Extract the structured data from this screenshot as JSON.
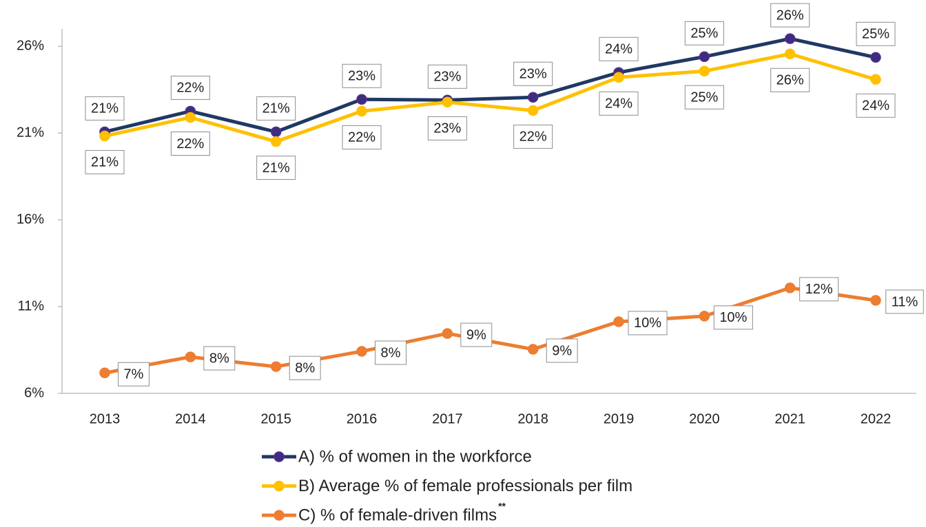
{
  "chart_data": {
    "type": "line",
    "categories": [
      "2013",
      "2014",
      "2015",
      "2016",
      "2017",
      "2018",
      "2019",
      "2020",
      "2021",
      "2022"
    ],
    "series": [
      {
        "name": "A) % of women in the workforce",
        "color": "#203864",
        "marker_color": "#3b2d80",
        "values": [
          21.07,
          22.26,
          21.07,
          22.94,
          22.9,
          23.06,
          24.49,
          25.4,
          26.44,
          25.36
        ],
        "value_labels": [
          "21%",
          "22%",
          "21%",
          "23%",
          "23%",
          "23%",
          "24%",
          "25%",
          "26%",
          "25%"
        ]
      },
      {
        "name": "B) Average % of female professionals per film",
        "color": "#ffc000",
        "marker_color": "#ffc000",
        "values": [
          20.83,
          21.9,
          20.51,
          22.26,
          22.78,
          22.3,
          24.21,
          24.57,
          25.56,
          24.09
        ],
        "value_labels": [
          "21%",
          "22%",
          "21%",
          "22%",
          "23%",
          "22%",
          "24%",
          "25%",
          "26%",
          "24%"
        ]
      },
      {
        "name": "C) % of female-driven films",
        "footnote_mark": "**",
        "color": "#ed7d31",
        "marker_color": "#ed7d31",
        "values": [
          7.18,
          8.1,
          7.54,
          8.42,
          9.45,
          8.54,
          10.13,
          10.45,
          12.08,
          11.36
        ],
        "value_labels": [
          "7%",
          "8%",
          "8%",
          "8%",
          "9%",
          "9%",
          "10%",
          "10%",
          "12%",
          "11%"
        ]
      }
    ],
    "ylim": [
      6,
      27
    ],
    "yticks": [
      {
        "value": 6,
        "label": "6%"
      },
      {
        "value": 11,
        "label": "11%"
      },
      {
        "value": 16,
        "label": "16%"
      },
      {
        "value": 21,
        "label": "21%"
      },
      {
        "value": 26,
        "label": "26%"
      }
    ],
    "grid": false,
    "legend": "bottom"
  }
}
